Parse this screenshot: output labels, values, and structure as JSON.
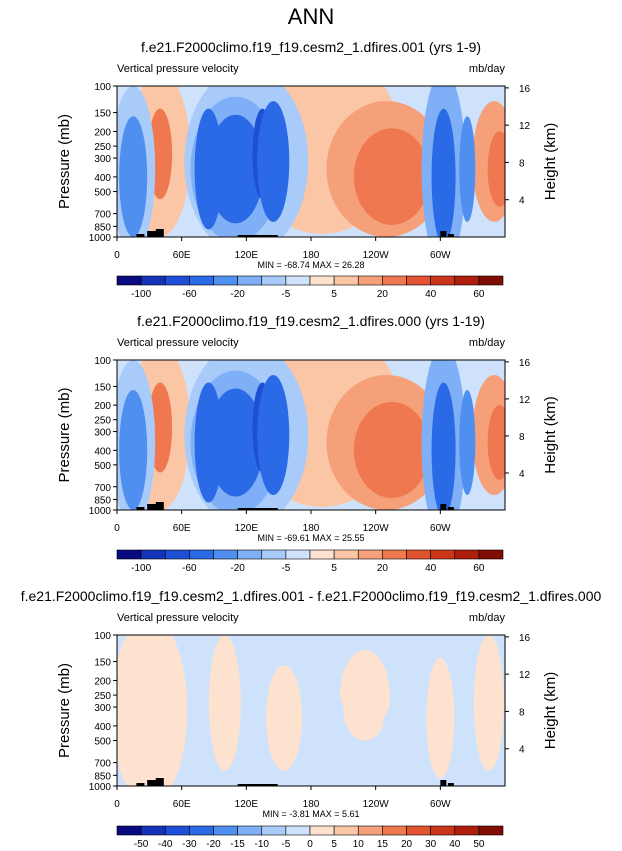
{
  "page": {
    "title": "ANN"
  },
  "shared": {
    "var_label": "Vertical pressure velocity",
    "units": "mb/day",
    "ylabel": "Pressure (mb)",
    "ylabel_right": "Height (km)"
  },
  "chart_data": [
    {
      "type": "heatmap",
      "title": "f.e21.F2000climo.f19_f19.cesm2_1.dfires.001 (yrs 1-9)",
      "subtitle_left": "Vertical pressure velocity",
      "subtitle_right": "mb/day",
      "xlabel": "",
      "ylabel": "Pressure (mb)",
      "ylabel_right": "Height (km)",
      "x_ticks": [
        "0",
        "60E",
        "120E",
        "180",
        "120W",
        "60W"
      ],
      "y_ticks": [
        "100",
        "150",
        "200",
        "250",
        "300",
        "400",
        "500",
        "700",
        "850",
        "1000"
      ],
      "y_right_ticks": [
        "16",
        "12",
        "8",
        "4"
      ],
      "min_max_text": "MIN = -68.74   MAX =  26.28",
      "min": -68.74,
      "max": 26.28,
      "colorbar_labels": [
        "-100",
        "-60",
        "-20",
        "-5",
        "5",
        "20",
        "40",
        "60"
      ],
      "colorbar_colors": [
        "#0a0a80",
        "#1433b8",
        "#1f4fd6",
        "#2b6ae6",
        "#4f8ff0",
        "#7fb0f7",
        "#a8cbfa",
        "#cfe2fb",
        "#fde2cf",
        "#fbc6a6",
        "#f6a07a",
        "#ef7850",
        "#e2532f",
        "#cb3519",
        "#ad1f0c",
        "#7f0d04"
      ],
      "scale": "diverging"
    },
    {
      "type": "heatmap",
      "title": "f.e21.F2000climo.f19_f19.cesm2_1.dfires.000 (yrs 1-19)",
      "subtitle_left": "Vertical pressure velocity",
      "subtitle_right": "mb/day",
      "xlabel": "",
      "ylabel": "Pressure (mb)",
      "ylabel_right": "Height (km)",
      "x_ticks": [
        "0",
        "60E",
        "120E",
        "180",
        "120W",
        "60W"
      ],
      "y_ticks": [
        "100",
        "150",
        "200",
        "250",
        "300",
        "400",
        "500",
        "700",
        "850",
        "1000"
      ],
      "y_right_ticks": [
        "16",
        "12",
        "8",
        "4"
      ],
      "min_max_text": "MIN = -69.61   MAX =  25.55",
      "min": -69.61,
      "max": 25.55,
      "colorbar_labels": [
        "-100",
        "-60",
        "-20",
        "-5",
        "5",
        "20",
        "40",
        "60"
      ],
      "colorbar_colors": [
        "#0a0a80",
        "#1433b8",
        "#1f4fd6",
        "#2b6ae6",
        "#4f8ff0",
        "#7fb0f7",
        "#a8cbfa",
        "#cfe2fb",
        "#fde2cf",
        "#fbc6a6",
        "#f6a07a",
        "#ef7850",
        "#e2532f",
        "#cb3519",
        "#ad1f0c",
        "#7f0d04"
      ],
      "scale": "diverging"
    },
    {
      "type": "heatmap",
      "title": "f.e21.F2000climo.f19_f19.cesm2_1.dfires.001 - f.e21.F2000climo.f19_f19.cesm2_1.dfires.000",
      "subtitle_left": "Vertical pressure velocity",
      "subtitle_right": "mb/day",
      "xlabel": "",
      "ylabel": "Pressure (mb)",
      "ylabel_right": "Height (km)",
      "x_ticks": [
        "0",
        "60E",
        "120E",
        "180",
        "120W",
        "60W"
      ],
      "y_ticks": [
        "100",
        "150",
        "200",
        "250",
        "300",
        "400",
        "500",
        "700",
        "850",
        "1000"
      ],
      "y_right_ticks": [
        "16",
        "12",
        "8",
        "4"
      ],
      "min_max_text": "MIN =  -3.81   MAX =   5.61",
      "min": -3.81,
      "max": 5.61,
      "colorbar_labels": [
        "-50",
        "-40",
        "-30",
        "-20",
        "-15",
        "-10",
        "-5",
        "0",
        "5",
        "10",
        "15",
        "20",
        "30",
        "40",
        "50"
      ],
      "colorbar_colors": [
        "#0a0a80",
        "#1433b8",
        "#1f4fd6",
        "#2b6ae6",
        "#4f8ff0",
        "#7fb0f7",
        "#a8cbfa",
        "#cfe2fb",
        "#fde2cf",
        "#fbc6a6",
        "#f6a07a",
        "#ef7850",
        "#e2532f",
        "#cb3519",
        "#ad1f0c",
        "#7f0d04"
      ],
      "scale": "difference"
    }
  ]
}
